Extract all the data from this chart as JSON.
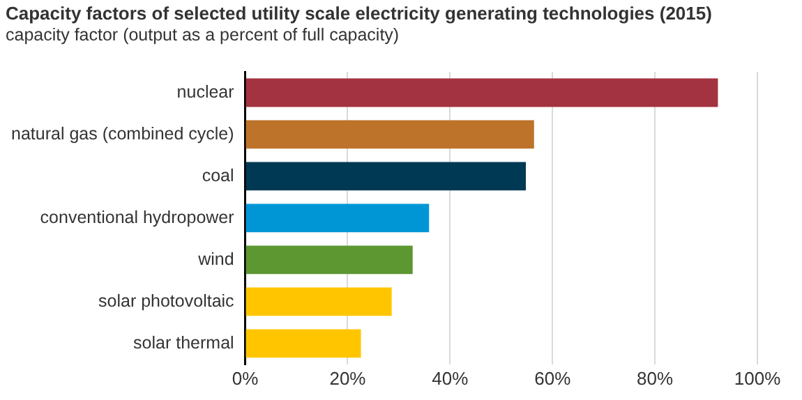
{
  "chart_data": {
    "type": "bar",
    "orientation": "horizontal",
    "title": "Capacity factors of selected utility scale electricity generating technologies (2015)",
    "subtitle": "capacity factor (output as a percent of full capacity)",
    "categories": [
      "nuclear",
      "natural gas (combined cycle)",
      "coal",
      "conventional hydropower",
      "wind",
      "solar photovoltaic",
      "solar thermal"
    ],
    "values": [
      92.3,
      56.4,
      54.8,
      35.9,
      32.7,
      28.6,
      22.6
    ],
    "colors": [
      "#a33340",
      "#bd732a",
      "#003953",
      "#0096d6",
      "#5d9732",
      "#ffc600",
      "#ffc600"
    ],
    "xlim": [
      0,
      100
    ],
    "xticks": [
      {
        "value": 0,
        "label": "0%"
      },
      {
        "value": 20,
        "label": "20%"
      },
      {
        "value": 40,
        "label": "40%"
      },
      {
        "value": 60,
        "label": "60%"
      },
      {
        "value": 80,
        "label": "80%"
      },
      {
        "value": 100,
        "label": "100%"
      }
    ],
    "grid": "x",
    "legend": false
  }
}
